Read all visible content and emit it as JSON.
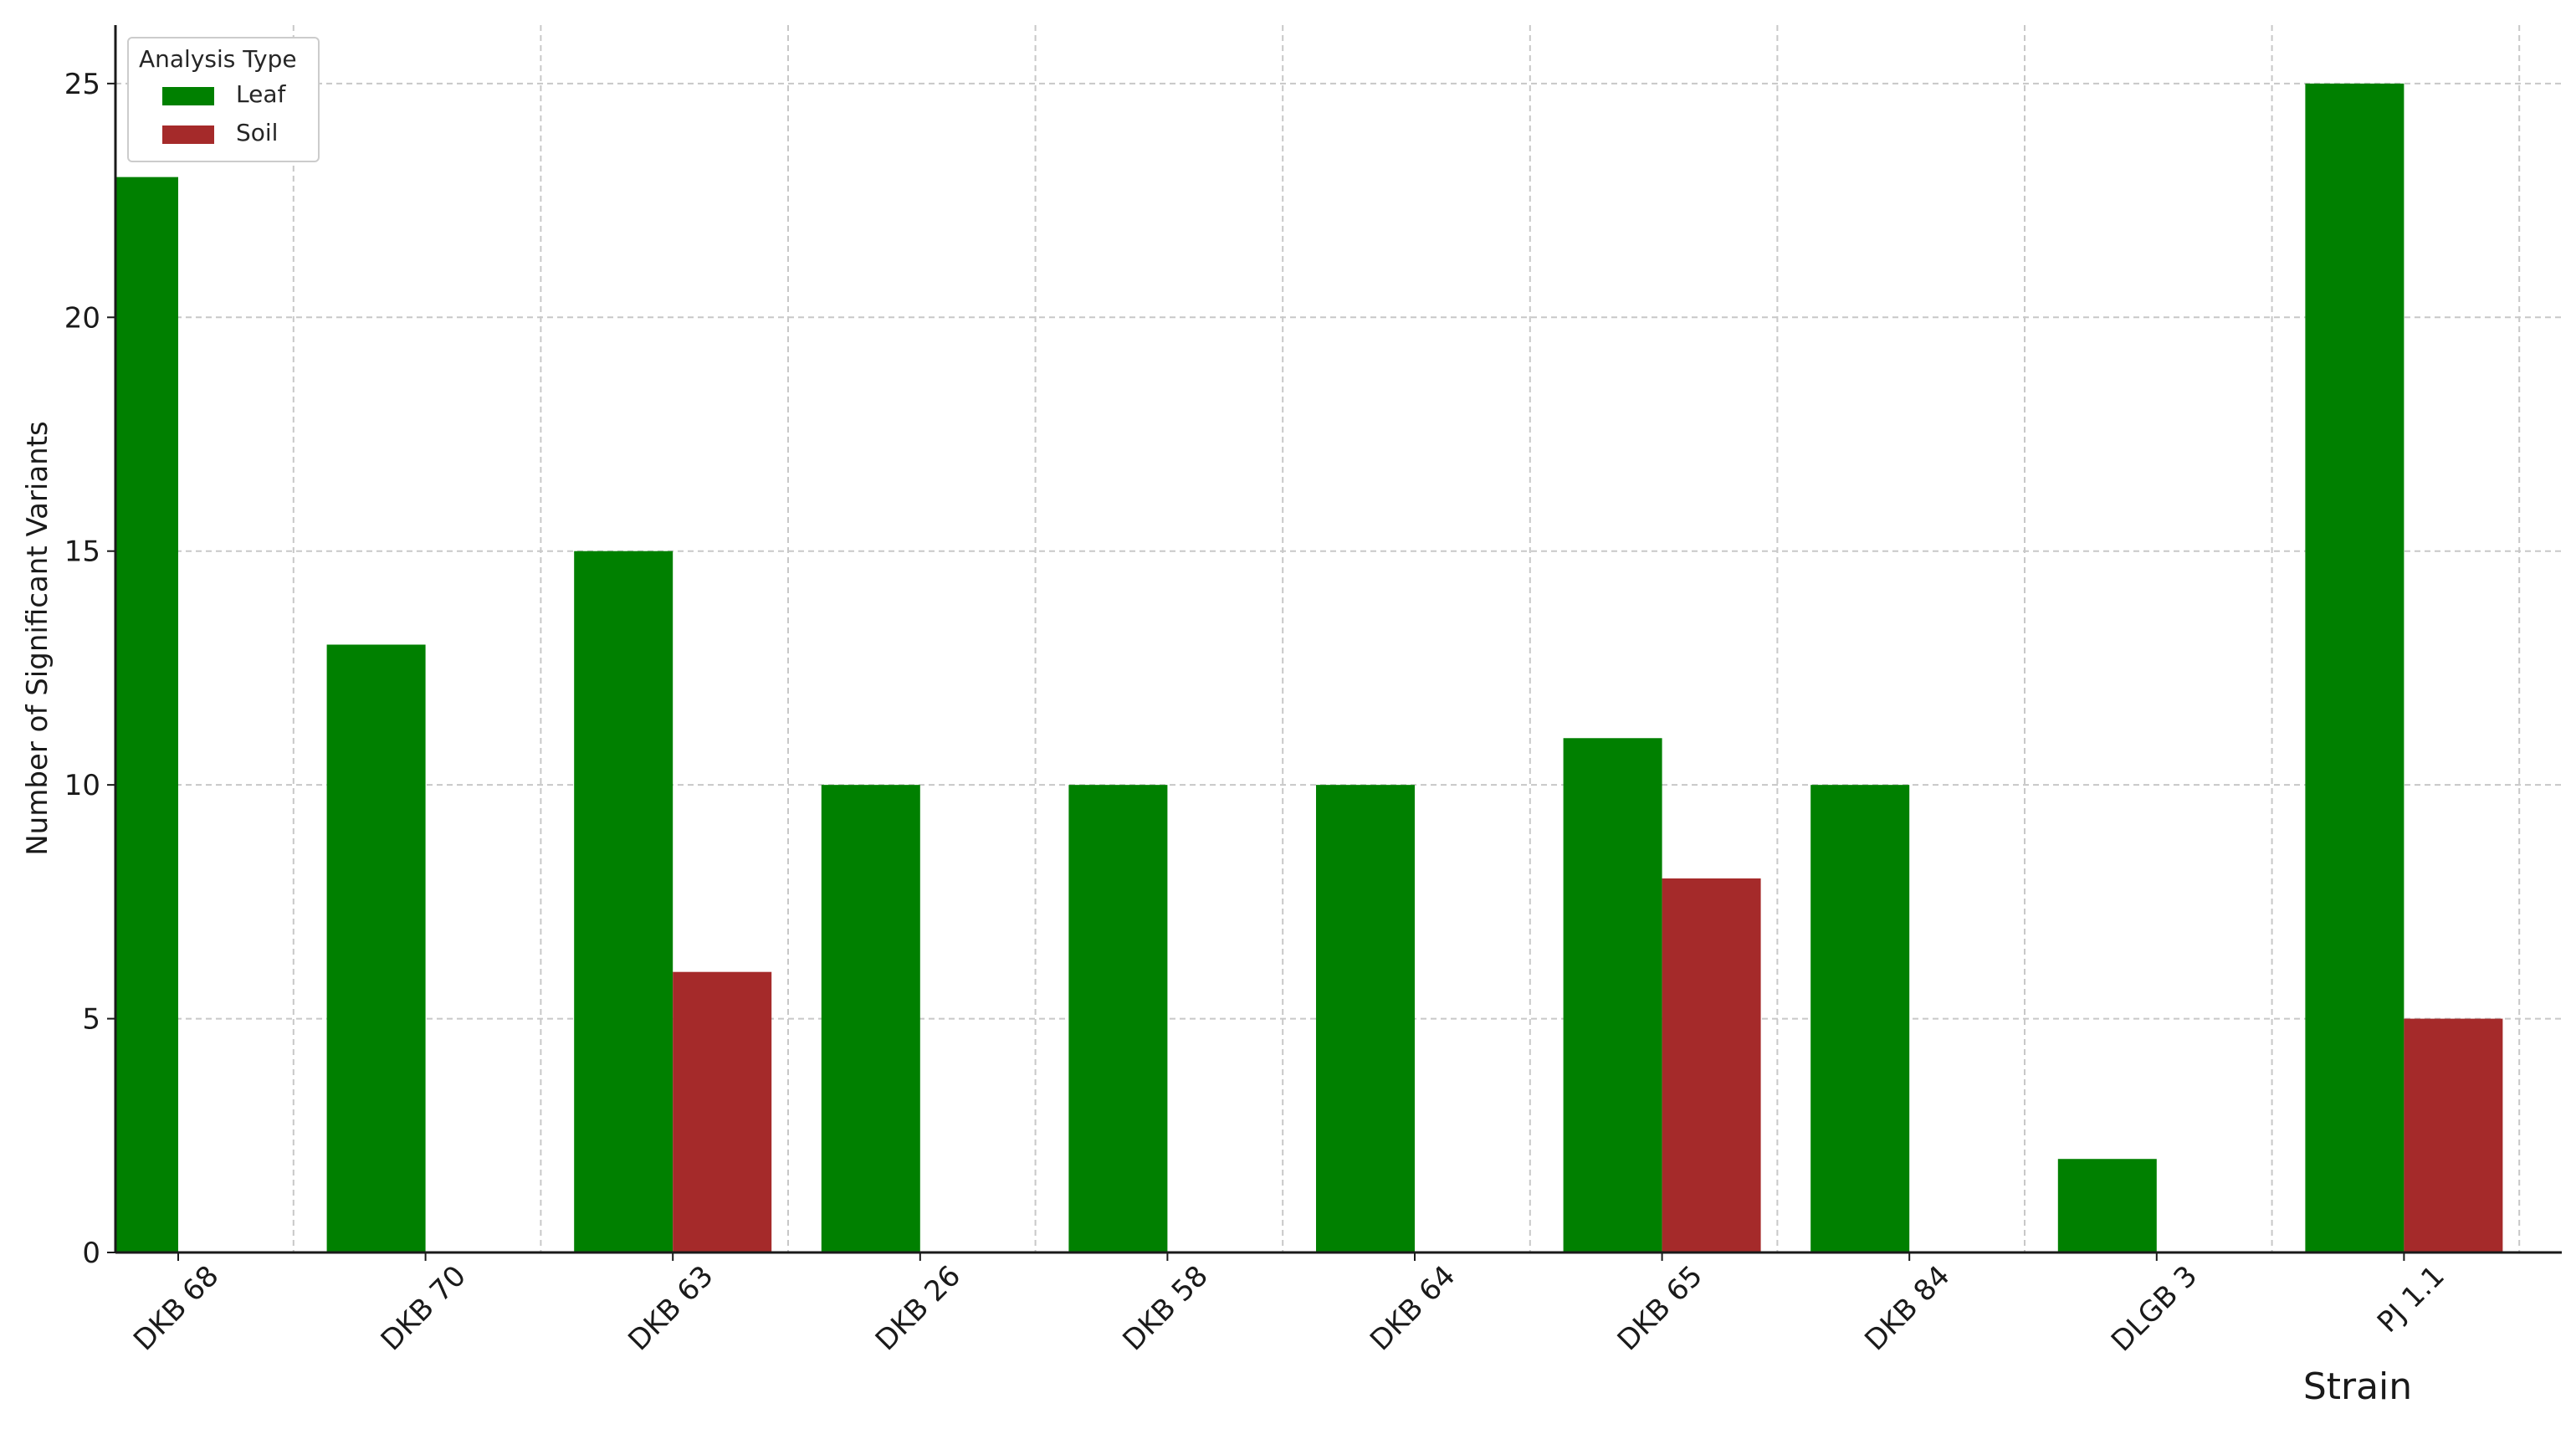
{
  "chart_data": {
    "type": "bar",
    "categories": [
      "DKB 68",
      "DKB 70",
      "DKB 63",
      "DKB 26",
      "DKB 58",
      "DKB 64",
      "DKB 65",
      "DKB 84",
      "DLGB 3",
      "PJ 1.1"
    ],
    "series": [
      {
        "name": "Leaf",
        "color": "#008000",
        "values": [
          23,
          13,
          15,
          10,
          10,
          10,
          11,
          10,
          2,
          25
        ]
      },
      {
        "name": "Soil",
        "color": "#a52a2a",
        "values": [
          0,
          0,
          6,
          0,
          0,
          0,
          8,
          0,
          0,
          5
        ]
      }
    ],
    "xlabel": "Strain",
    "ylabel": "Number of Significant Variants",
    "ylim": [
      0,
      26.25
    ],
    "yticks": [
      0,
      5,
      10,
      15,
      20,
      25
    ],
    "grid": true,
    "legend": {
      "title": "Analysis Type",
      "placement": "top-left"
    }
  }
}
